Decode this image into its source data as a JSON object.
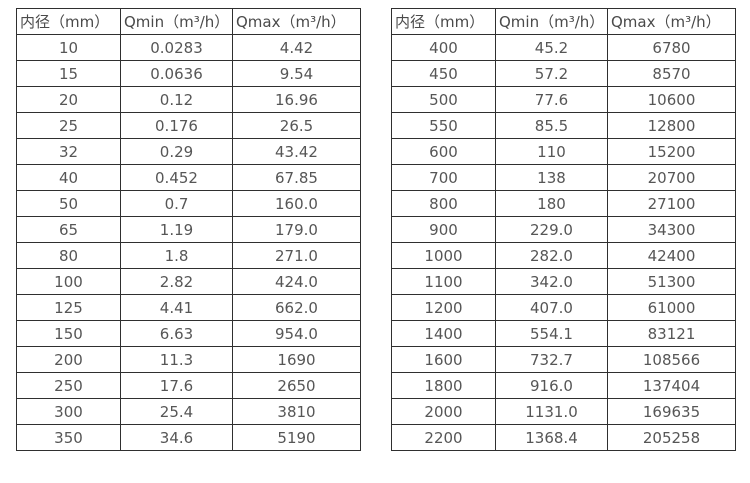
{
  "page": {
    "background": "#ffffff",
    "border_color": "#2f2f2f",
    "text_color": "#565656"
  },
  "tables": [
    {
      "name": "flow-table-small-diameters",
      "headers": [
        "内径（mm）",
        "Qmin（m³/h）",
        "Qmax（m³/h）"
      ],
      "rows": [
        [
          "10",
          "0.0283",
          "4.42"
        ],
        [
          "15",
          "0.0636",
          "9.54"
        ],
        [
          "20",
          "0.12",
          "16.96"
        ],
        [
          "25",
          "0.176",
          "26.5"
        ],
        [
          "32",
          "0.29",
          "43.42"
        ],
        [
          "40",
          "0.452",
          "67.85"
        ],
        [
          "50",
          "0.7",
          "160.0"
        ],
        [
          "65",
          "1.19",
          "179.0"
        ],
        [
          "80",
          "1.8",
          "271.0"
        ],
        [
          "100",
          "2.82",
          "424.0"
        ],
        [
          "125",
          "4.41",
          "662.0"
        ],
        [
          "150",
          "6.63",
          "954.0"
        ],
        [
          "200",
          "11.3",
          "1690"
        ],
        [
          "250",
          "17.6",
          "2650"
        ],
        [
          "300",
          "25.4",
          "3810"
        ],
        [
          "350",
          "34.6",
          "5190"
        ]
      ]
    },
    {
      "name": "flow-table-large-diameters",
      "headers": [
        "内径（mm）",
        "Qmin（m³/h）",
        "Qmax（m³/h）"
      ],
      "rows": [
        [
          "400",
          "45.2",
          "6780"
        ],
        [
          "450",
          "57.2",
          "8570"
        ],
        [
          "500",
          "77.6",
          "10600"
        ],
        [
          "550",
          "85.5",
          "12800"
        ],
        [
          "600",
          "110",
          "15200"
        ],
        [
          "700",
          "138",
          "20700"
        ],
        [
          "800",
          "180",
          "27100"
        ],
        [
          "900",
          "229.0",
          "34300"
        ],
        [
          "1000",
          "282.0",
          "42400"
        ],
        [
          "1100",
          "342.0",
          "51300"
        ],
        [
          "1200",
          "407.0",
          "61000"
        ],
        [
          "1400",
          "554.1",
          "83121"
        ],
        [
          "1600",
          "732.7",
          "108566"
        ],
        [
          "1800",
          "916.0",
          "137404"
        ],
        [
          "2000",
          "1131.0",
          "169635"
        ],
        [
          "2200",
          "1368.4",
          "205258"
        ]
      ]
    }
  ]
}
